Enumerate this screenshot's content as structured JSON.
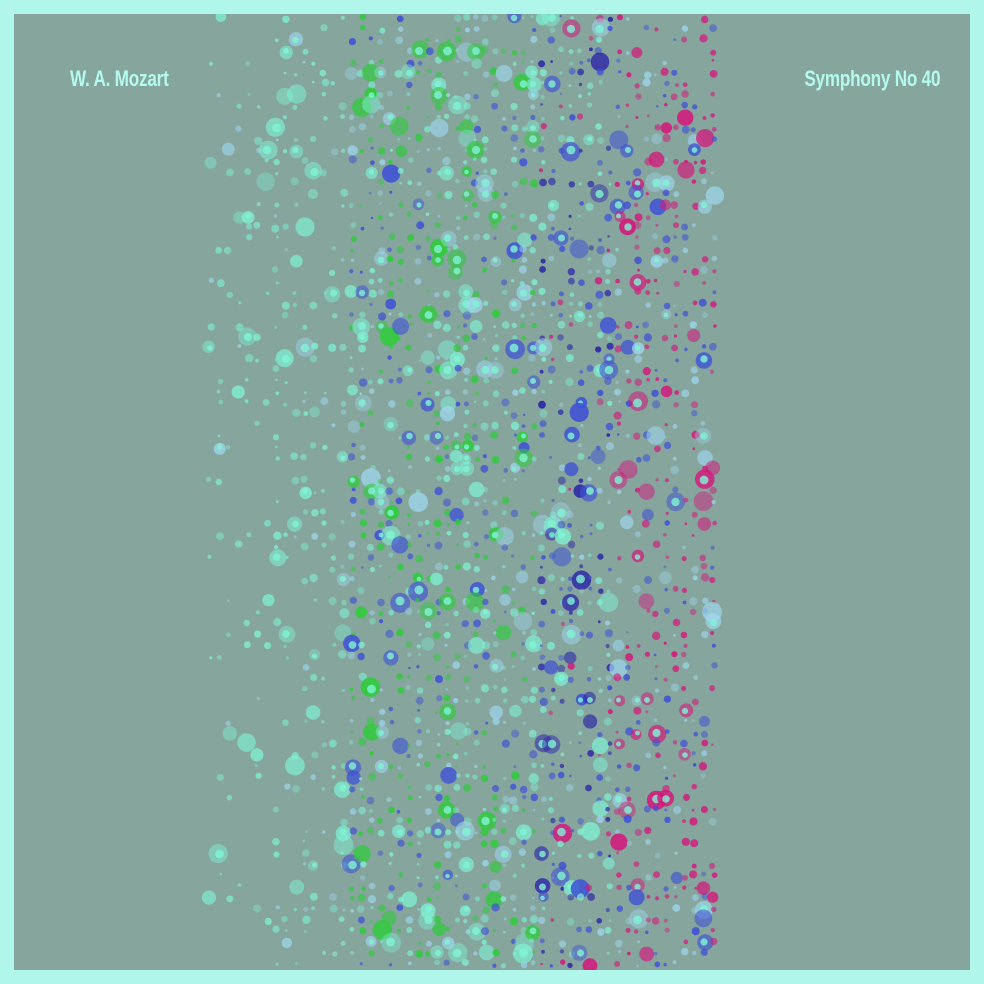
{
  "composer": "W. A. Mozart",
  "title": "Symphony No 40",
  "colors": {
    "frame": "#b1f6ea",
    "background": "#85a59d",
    "text": "#b3fbef",
    "mint": "#7ff5d6",
    "green": "#2ecc3a",
    "blue": "#3f51d6",
    "navy": "#2a1fa8",
    "magenta": "#d4197c",
    "pale_blue": "#9fd8f0"
  }
}
